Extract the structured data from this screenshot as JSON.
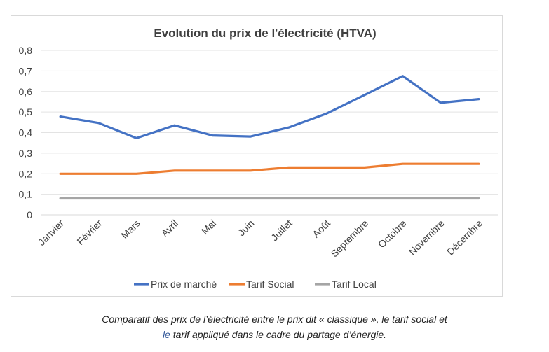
{
  "chart_data": {
    "type": "line",
    "title": "Evolution du prix de l'électricité (HTVA)",
    "categories": [
      "Janvier",
      "Février",
      "Mars",
      "Avril",
      "Mai",
      "Juin",
      "Juillet",
      "Août",
      "Septembre",
      "Octobre",
      "Novembre",
      "Décembre"
    ],
    "ylim": [
      0,
      0.8
    ],
    "yticks": [
      "0",
      "0,1",
      "0,2",
      "0,3",
      "0,4",
      "0,5",
      "0,6",
      "0,7",
      "0,8"
    ],
    "grid": true,
    "legend_position": "bottom",
    "series": [
      {
        "name": "Prix de marché",
        "color": "#4472c4",
        "values": [
          0.478,
          0.447,
          0.373,
          0.435,
          0.386,
          0.381,
          0.425,
          0.493,
          0.583,
          0.675,
          0.545,
          0.563
        ]
      },
      {
        "name": "Tarif Social",
        "color": "#ed7d31",
        "values": [
          0.2,
          0.2,
          0.2,
          0.215,
          0.215,
          0.215,
          0.23,
          0.23,
          0.23,
          0.248,
          0.248,
          0.248
        ]
      },
      {
        "name": "Tarif Local",
        "color": "#a5a5a5",
        "values": [
          0.08,
          0.08,
          0.08,
          0.08,
          0.08,
          0.08,
          0.08,
          0.08,
          0.08,
          0.08,
          0.08,
          0.08
        ]
      }
    ]
  },
  "caption": {
    "line1": "Comparatif des prix de l’électricité entre le prix dit « classique », le tarif social et",
    "line2_link": "le",
    "line2_rest": " tarif appliqué dans le cadre du partage d’énergie."
  }
}
